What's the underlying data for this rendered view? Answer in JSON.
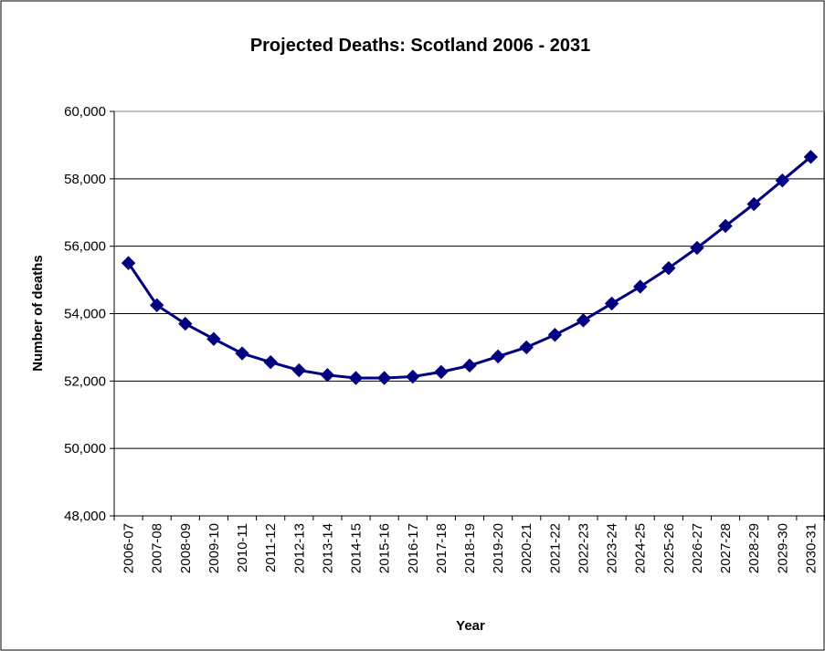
{
  "chart_data": {
    "type": "line",
    "title": "Projected Deaths: Scotland 2006 - 2031",
    "xlabel": "Year",
    "ylabel": "Number of deaths",
    "ylim": [
      48000,
      60000
    ],
    "yticks": [
      "48,000",
      "50,000",
      "52,000",
      "54,000",
      "56,000",
      "58,000",
      "60,000"
    ],
    "ytick_values": [
      48000,
      50000,
      52000,
      54000,
      56000,
      58000,
      60000
    ],
    "grid": true,
    "legend": "none",
    "categories": [
      "2006-07",
      "2007-08",
      "2008-09",
      "2009-10",
      "2010-11",
      "2011-12",
      "2012-13",
      "2013-14",
      "2014-15",
      "2015-16",
      "2016-17",
      "2017-18",
      "2018-19",
      "2019-20",
      "2020-21",
      "2021-22",
      "2022-23",
      "2023-24",
      "2024-25",
      "2025-26",
      "2026-27",
      "2027-28",
      "2028-29",
      "2029-30",
      "2030-31"
    ],
    "series": [
      {
        "values": [
          55500,
          54250,
          53700,
          53250,
          52820,
          52560,
          52320,
          52180,
          52090,
          52090,
          52130,
          52270,
          52460,
          52730,
          53000,
          53370,
          53800,
          54300,
          54800,
          55350,
          55950,
          56600,
          57250,
          57950,
          58650
        ],
        "color": "#000080",
        "marker": "diamond"
      }
    ]
  }
}
